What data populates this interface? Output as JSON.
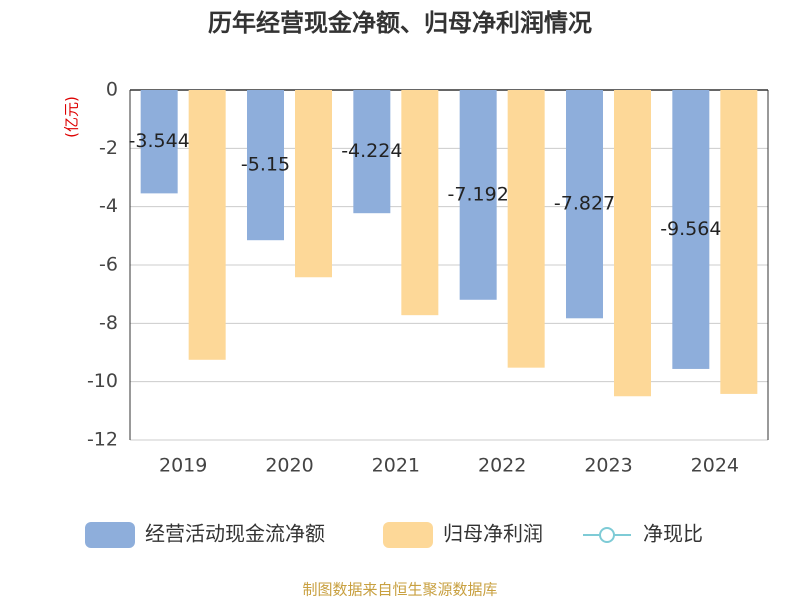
{
  "chart_data": {
    "type": "bar",
    "title": "历年经营现金净额、归母净利润情况",
    "y_label": "(亿元)",
    "categories": [
      "2019",
      "2020",
      "2021",
      "2022",
      "2023",
      "2024"
    ],
    "series": [
      {
        "name": "经营活动现金流净额",
        "color": "#8eaedb",
        "values": [
          -3.544,
          -5.15,
          -4.224,
          -7.192,
          -7.827,
          -9.564
        ],
        "labels": true
      },
      {
        "name": "归母净利润",
        "color": "#fdd898",
        "values": [
          -9.25,
          -6.42,
          -7.72,
          -9.52,
          -10.5,
          -10.42
        ]
      },
      {
        "name": "净现比",
        "color": "#7ecbd6",
        "type": "line",
        "values": [
          null,
          null,
          null,
          null,
          null,
          null
        ]
      }
    ],
    "ylim": [
      -12,
      0
    ],
    "yticks": [
      0,
      -2,
      -4,
      -6,
      -8,
      -10,
      -12
    ],
    "grid": true,
    "source": "制图数据来自恒生聚源数据库"
  }
}
